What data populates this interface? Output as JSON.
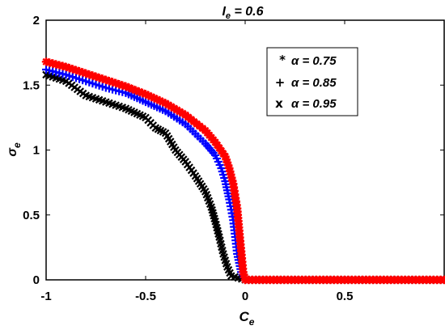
{
  "chart_data": {
    "type": "scatter",
    "title": {
      "main": "I",
      "sub": "e",
      "rest": " = 0.6"
    },
    "xlabel": {
      "main": "C",
      "sub": "e"
    },
    "ylabel": {
      "main": "σ",
      "sub": "e"
    },
    "xlim": [
      -1,
      1
    ],
    "ylim": [
      0,
      2
    ],
    "xticks": [
      -1,
      -0.5,
      0,
      0.5
    ],
    "xtick_labels": [
      "-1",
      "-0.5",
      "0",
      "0.5"
    ],
    "yticks": [
      0,
      0.5,
      1,
      1.5,
      2
    ],
    "ytick_labels": [
      "0",
      "0.5",
      "1",
      "1.5",
      "2"
    ],
    "grid": false,
    "legend_position": "top-right",
    "series": [
      {
        "name": "α = 0.75",
        "legend_symbol": "*",
        "legend_label": "α = 0.75",
        "marker": "*",
        "color": "#ff0000",
        "points": [
          [
            -1.0,
            1.68
          ],
          [
            -0.9,
            1.64
          ],
          [
            -0.8,
            1.59
          ],
          [
            -0.7,
            1.54
          ],
          [
            -0.6,
            1.49
          ],
          [
            -0.5,
            1.43
          ],
          [
            -0.4,
            1.36
          ],
          [
            -0.3,
            1.27
          ],
          [
            -0.2,
            1.15
          ],
          [
            -0.15,
            1.06
          ],
          [
            -0.1,
            0.95
          ],
          [
            -0.08,
            0.86
          ],
          [
            -0.06,
            0.74
          ],
          [
            -0.04,
            0.55
          ],
          [
            -0.03,
            0.38
          ],
          [
            -0.02,
            0.22
          ],
          [
            -0.01,
            0.06
          ],
          [
            0.0,
            0.0
          ],
          [
            0.25,
            0.0
          ],
          [
            0.5,
            0.0
          ],
          [
            0.75,
            0.0
          ],
          [
            1.0,
            0.0
          ]
        ]
      },
      {
        "name": "α = 0.85",
        "legend_symbol": "+",
        "legend_label": "α = 0.85",
        "marker": "+",
        "color": "#0000ff",
        "points": [
          [
            -1.0,
            1.62
          ],
          [
            -0.9,
            1.58
          ],
          [
            -0.8,
            1.53
          ],
          [
            -0.7,
            1.48
          ],
          [
            -0.6,
            1.44
          ],
          [
            -0.5,
            1.37
          ],
          [
            -0.4,
            1.3
          ],
          [
            -0.3,
            1.2
          ],
          [
            -0.2,
            1.05
          ],
          [
            -0.15,
            0.96
          ],
          [
            -0.12,
            0.86
          ],
          [
            -0.1,
            0.76
          ],
          [
            -0.08,
            0.62
          ],
          [
            -0.06,
            0.46
          ],
          [
            -0.05,
            0.33
          ],
          [
            -0.04,
            0.2
          ],
          [
            -0.02,
            0.06
          ],
          [
            0.0,
            0.0
          ],
          [
            0.25,
            0.0
          ],
          [
            0.5,
            0.0
          ],
          [
            0.75,
            0.0
          ],
          [
            1.0,
            0.0
          ]
        ]
      },
      {
        "name": "α = 0.95",
        "legend_symbol": "x",
        "legend_label": "α = 0.95",
        "marker": "x",
        "color": "#000000",
        "points": [
          [
            -1.0,
            1.58
          ],
          [
            -0.9,
            1.53
          ],
          [
            -0.8,
            1.42
          ],
          [
            -0.7,
            1.37
          ],
          [
            -0.6,
            1.32
          ],
          [
            -0.5,
            1.25
          ],
          [
            -0.45,
            1.17
          ],
          [
            -0.4,
            1.13
          ],
          [
            -0.35,
            1.0
          ],
          [
            -0.3,
            0.91
          ],
          [
            -0.25,
            0.8
          ],
          [
            -0.2,
            0.68
          ],
          [
            -0.17,
            0.56
          ],
          [
            -0.15,
            0.45
          ],
          [
            -0.13,
            0.33
          ],
          [
            -0.11,
            0.2
          ],
          [
            -0.09,
            0.1
          ],
          [
            -0.07,
            0.03
          ],
          [
            0.0,
            0.0
          ],
          [
            0.25,
            0.0
          ],
          [
            0.5,
            0.0
          ],
          [
            0.75,
            0.0
          ],
          [
            1.0,
            0.0
          ]
        ]
      }
    ]
  }
}
